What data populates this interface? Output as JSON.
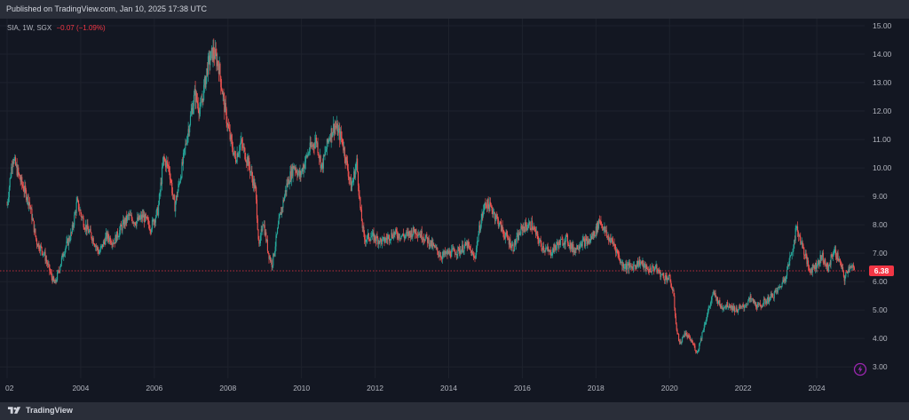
{
  "header": {
    "published": "Published on TradingView.com, Jan 10, 2025 17:38 UTC"
  },
  "legend": {
    "symbol": "SIA, 1W, SGX",
    "change": "−0.07 (−1.09%)"
  },
  "footer": {
    "brand": "TradingView"
  },
  "colors": {
    "background": "#131722",
    "frame": "#2a2e39",
    "up": "#26a69a",
    "down": "#ef5350",
    "price_line": "#f23645",
    "axis_text": "#b2b5be",
    "grid": "#1e222d"
  },
  "icons": {
    "logo": "tradingview-logo-icon",
    "flash": "lightning-bolt-icon"
  },
  "chart_data": {
    "type": "candlestick",
    "interval": "1W",
    "symbol": "SIA",
    "exchange": "SGX",
    "last_price": 6.38,
    "last_price_label": "6.38",
    "x_ticks": [
      "02",
      "2004",
      "2006",
      "2008",
      "2010",
      "2012",
      "2014",
      "2016",
      "2018",
      "2020",
      "2022",
      "2024"
    ],
    "x_tick_years": [
      2002,
      2004,
      2006,
      2008,
      2010,
      2012,
      2014,
      2016,
      2018,
      2020,
      2022,
      2024
    ],
    "xlim": [
      2002.0,
      2025.3
    ],
    "y_ticks": [
      "3.00",
      "4.00",
      "5.00",
      "6.00",
      "7.00",
      "8.00",
      "9.00",
      "10.00",
      "11.00",
      "12.00",
      "13.00",
      "14.00",
      "15.00"
    ],
    "ylim": [
      2.6,
      15.25
    ],
    "grid": true,
    "price_path": [
      [
        2002.0,
        8.7
      ],
      [
        2002.15,
        10.4
      ],
      [
        2002.35,
        9.6
      ],
      [
        2002.6,
        8.8
      ],
      [
        2002.8,
        7.4
      ],
      [
        2003.0,
        7.0
      ],
      [
        2003.2,
        6.2
      ],
      [
        2003.3,
        5.9
      ],
      [
        2003.55,
        7.1
      ],
      [
        2003.75,
        7.7
      ],
      [
        2003.9,
        8.8
      ],
      [
        2004.1,
        8.0
      ],
      [
        2004.3,
        7.6
      ],
      [
        2004.5,
        7.0
      ],
      [
        2004.7,
        7.6
      ],
      [
        2004.9,
        7.4
      ],
      [
        2005.1,
        7.9
      ],
      [
        2005.3,
        8.3
      ],
      [
        2005.5,
        8.1
      ],
      [
        2005.7,
        8.3
      ],
      [
        2005.9,
        7.9
      ],
      [
        2006.1,
        8.5
      ],
      [
        2006.25,
        10.3
      ],
      [
        2006.4,
        10.0
      ],
      [
        2006.55,
        8.6
      ],
      [
        2006.75,
        10.0
      ],
      [
        2006.9,
        11.2
      ],
      [
        2007.1,
        12.6
      ],
      [
        2007.25,
        12.0
      ],
      [
        2007.45,
        13.6
      ],
      [
        2007.6,
        14.1
      ],
      [
        2007.75,
        13.6
      ],
      [
        2007.9,
        12.2
      ],
      [
        2008.05,
        11.1
      ],
      [
        2008.2,
        10.3
      ],
      [
        2008.35,
        10.9
      ],
      [
        2008.55,
        10.2
      ],
      [
        2008.75,
        9.2
      ],
      [
        2008.85,
        7.1
      ],
      [
        2008.95,
        8.2
      ],
      [
        2009.1,
        7.0
      ],
      [
        2009.2,
        6.6
      ],
      [
        2009.4,
        8.2
      ],
      [
        2009.6,
        9.4
      ],
      [
        2009.8,
        10.1
      ],
      [
        2009.95,
        9.7
      ],
      [
        2010.2,
        10.6
      ],
      [
        2010.4,
        11.0
      ],
      [
        2010.55,
        10.0
      ],
      [
        2010.75,
        11.1
      ],
      [
        2010.9,
        11.5
      ],
      [
        2011.1,
        11.0
      ],
      [
        2011.25,
        10.0
      ],
      [
        2011.35,
        9.3
      ],
      [
        2011.5,
        10.2
      ],
      [
        2011.6,
        8.5
      ],
      [
        2011.7,
        7.5
      ],
      [
        2011.9,
        7.6
      ],
      [
        2012.2,
        7.4
      ],
      [
        2012.5,
        7.7
      ],
      [
        2012.8,
        7.6
      ],
      [
        2013.1,
        7.8
      ],
      [
        2013.4,
        7.5
      ],
      [
        2013.6,
        7.2
      ],
      [
        2013.8,
        6.9
      ],
      [
        2014.0,
        7.0
      ],
      [
        2014.3,
        7.1
      ],
      [
        2014.5,
        7.3
      ],
      [
        2014.7,
        6.8
      ],
      [
        2014.85,
        8.0
      ],
      [
        2015.0,
        8.8
      ],
      [
        2015.2,
        8.5
      ],
      [
        2015.5,
        7.7
      ],
      [
        2015.75,
        7.2
      ],
      [
        2016.0,
        7.9
      ],
      [
        2016.25,
        8.0
      ],
      [
        2016.5,
        7.3
      ],
      [
        2016.75,
        7.0
      ],
      [
        2016.95,
        7.3
      ],
      [
        2017.2,
        7.5
      ],
      [
        2017.4,
        7.1
      ],
      [
        2017.6,
        7.4
      ],
      [
        2017.8,
        7.4
      ],
      [
        2018.0,
        7.8
      ],
      [
        2018.1,
        8.2
      ],
      [
        2018.3,
        7.6
      ],
      [
        2018.5,
        7.3
      ],
      [
        2018.7,
        6.6
      ],
      [
        2018.95,
        6.5
      ],
      [
        2019.2,
        6.7
      ],
      [
        2019.4,
        6.4
      ],
      [
        2019.6,
        6.5
      ],
      [
        2019.8,
        6.2
      ],
      [
        2020.0,
        6.1
      ],
      [
        2020.1,
        5.6
      ],
      [
        2020.2,
        4.2
      ],
      [
        2020.3,
        3.8
      ],
      [
        2020.4,
        4.2
      ],
      [
        2020.6,
        3.9
      ],
      [
        2020.75,
        3.5
      ],
      [
        2020.85,
        4.0
      ],
      [
        2020.95,
        4.5
      ],
      [
        2021.1,
        5.2
      ],
      [
        2021.2,
        5.6
      ],
      [
        2021.4,
        5.1
      ],
      [
        2021.6,
        5.2
      ],
      [
        2021.8,
        5.0
      ],
      [
        2022.0,
        5.1
      ],
      [
        2022.2,
        5.4
      ],
      [
        2022.4,
        5.1
      ],
      [
        2022.6,
        5.3
      ],
      [
        2022.8,
        5.5
      ],
      [
        2023.0,
        5.8
      ],
      [
        2023.15,
        6.2
      ],
      [
        2023.35,
        7.2
      ],
      [
        2023.45,
        7.9
      ],
      [
        2023.6,
        7.3
      ],
      [
        2023.8,
        6.4
      ],
      [
        2024.0,
        6.6
      ],
      [
        2024.15,
        6.9
      ],
      [
        2024.3,
        6.4
      ],
      [
        2024.45,
        7.1
      ],
      [
        2024.6,
        6.8
      ],
      [
        2024.75,
        6.1
      ],
      [
        2024.9,
        6.6
      ],
      [
        2025.03,
        6.38
      ]
    ]
  }
}
